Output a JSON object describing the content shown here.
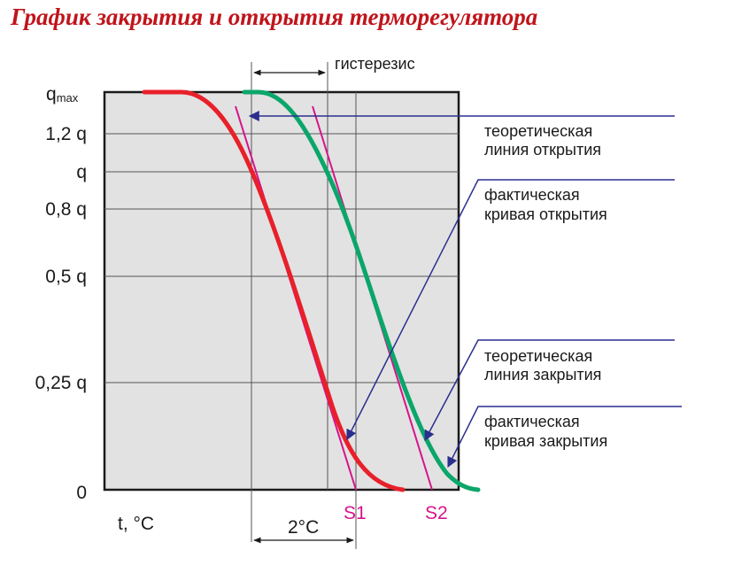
{
  "title": "График закрытия и открытия терморегулятора",
  "colors": {
    "red_curve": "#e8202a",
    "green_curve": "#0aa66a",
    "tangent": "#d6148c",
    "arrow": "#2a2f8e",
    "plot_bg": "#e2e2e2",
    "title": "#c0141b"
  },
  "y_axis": {
    "qmax_base": "q",
    "qmax_sub": "max",
    "ticks": [
      {
        "label": "1,2 q",
        "value": 1.2
      },
      {
        "label": "q",
        "value": 1.0
      },
      {
        "label": "0,8 q",
        "value": 0.8
      },
      {
        "label": "0,5 q",
        "value": 0.5
      },
      {
        "label": "0,25 q",
        "value": 0.25
      },
      {
        "label": "0",
        "value": 0
      }
    ]
  },
  "x_axis": {
    "label": "t, °C",
    "interval_label": "2°C",
    "markers": [
      {
        "id": "S1",
        "label": "S1"
      },
      {
        "id": "S2",
        "label": "S2"
      }
    ]
  },
  "hysteresis_label": "гистерезис",
  "annotations": {
    "theoretical_opening": [
      "теоретическая",
      "линия открытия"
    ],
    "actual_opening": [
      "фактическая",
      "кривая открытия"
    ],
    "theoretical_closing": [
      "теоретическая",
      "линия закрытия"
    ],
    "actual_closing": [
      "фактическая",
      "кривая закрытия"
    ]
  }
}
